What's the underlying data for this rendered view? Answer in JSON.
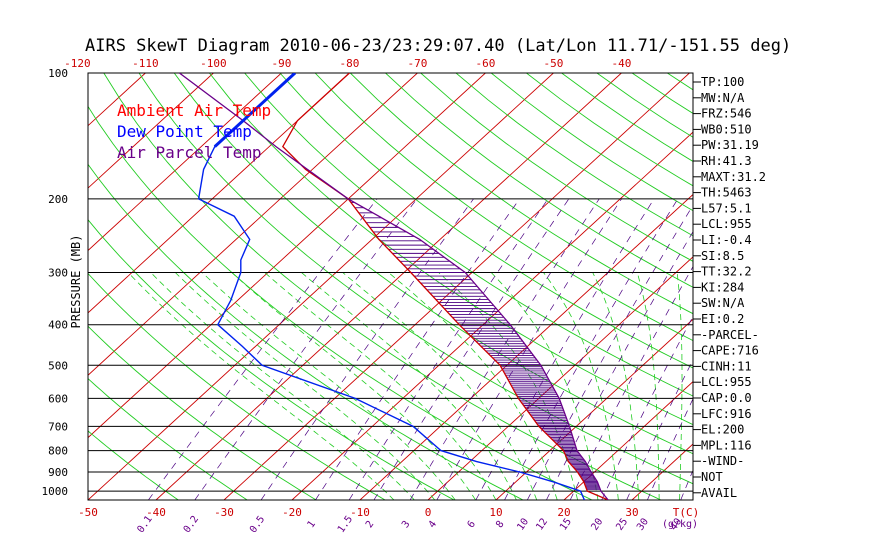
{
  "chart_data": {
    "type": "line",
    "title": "AIRS SkewT Diagram 2010-06-23/23:29:07.40 (Lat/Lon 11.71/-151.55 deg)",
    "ylabel": "PRESSURE (MB)",
    "xlabel_unit": "T(C)",
    "mixing_unit": "(g/kg)",
    "pressure_axis": {
      "scale": "log",
      "range": [
        1050,
        100
      ],
      "ticks": [
        100,
        200,
        300,
        400,
        500,
        600,
        700,
        800,
        900,
        1000
      ]
    },
    "temp_ticks_top": [
      -120,
      -110,
      -100,
      -90,
      -80,
      -70,
      -60,
      -50,
      -40
    ],
    "temp_ticks_bottom": [
      -50,
      -40,
      -30,
      -20,
      -10,
      0,
      10,
      20,
      30
    ],
    "mixing_ratio_labels": [
      "0.1",
      "0.2",
      "0.5",
      "1",
      "1.5",
      "2",
      "3",
      "4",
      "6",
      "8",
      "10",
      "12",
      "15",
      "20",
      "25",
      "30",
      "40"
    ],
    "legend": [
      {
        "name": "Ambient Air Temp",
        "color": "#ff0000"
      },
      {
        "name": "Dew Point Temp",
        "color": "#0000ff"
      },
      {
        "name": "Air Parcel Temp",
        "color": "#6a008a"
      }
    ],
    "series": [
      {
        "name": "Ambient Air Temp",
        "color": "#cc0000",
        "p": [
          1050,
          1000,
          950,
          900,
          850,
          800,
          700,
          600,
          500,
          400,
          300,
          250,
          200,
          170,
          150,
          130,
          100
        ],
        "t": [
          26.5,
          22,
          20,
          17.5,
          14.5,
          12,
          4.5,
          -3,
          -11,
          -23.5,
          -39,
          -49,
          -60,
          -71,
          -78,
          -80,
          -80
        ]
      },
      {
        "name": "Dew Point Temp",
        "color": "#0022ee",
        "p": [
          1050,
          1000,
          950,
          900,
          850,
          800,
          700,
          600,
          500,
          450,
          400,
          350,
          300,
          280,
          250,
          220,
          200,
          170,
          150,
          130,
          100
        ],
        "t": [
          23,
          21,
          15.5,
          9,
          1,
          -6,
          -14,
          -27,
          -46,
          -52,
          -59,
          -61,
          -64,
          -66,
          -68,
          -74,
          -82,
          -86,
          -88,
          -88,
          -88
        ]
      },
      {
        "name": "Air Parcel Temp",
        "color": "#6a008a",
        "p": [
          1050,
          1000,
          950,
          900,
          850,
          800,
          700,
          600,
          500,
          400,
          300,
          250,
          200,
          150,
          130,
          100
        ],
        "t": [
          26.5,
          24,
          22,
          19.5,
          17,
          14,
          9,
          3,
          -5,
          -16,
          -31,
          -43,
          -60,
          -79,
          -88,
          -105
        ]
      }
    ]
  },
  "side_panel": [
    "TP:100",
    "MW:N/A",
    "FRZ:546",
    "WB0:510",
    "PW:31.19",
    "RH:41.3",
    "MAXT:31.2",
    "TH:5463",
    "L57:5.1",
    "LCL:955",
    "LI:-0.4",
    "SI:8.5",
    "TT:32.2",
    "KI:284",
    "SW:N/A",
    "EI:0.2",
    "-PARCEL-",
    "CAPE:716",
    "CINH:11",
    "LCL:955",
    "CAP:0.0",
    "LFC:916",
    "EL:200",
    "MPL:116",
    "-WIND-",
    "NOT",
    "AVAIL"
  ],
  "colors": {
    "isotherm": "#cc0000",
    "dry_adiabat": "#22cc22",
    "moist_adiabat": "#22cc22",
    "mixing_ratio": "#4b0082",
    "isobar": "#000000",
    "cape_hatch": "#4b0082"
  }
}
